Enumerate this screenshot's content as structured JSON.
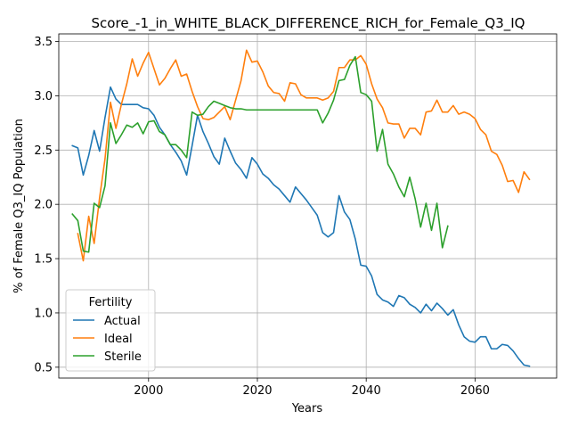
{
  "chart_data": {
    "type": "line",
    "title": "Score_-1_in_WHITE_BLACK_DIFFERENCE_RICH_for_Female_Q3_IQ",
    "xlabel": "Years",
    "ylabel": "% of Female Q3_IQ Population",
    "xlim": [
      2065.5,
      2075
    ],
    "x_ticks": [
      2000,
      2020,
      2040,
      2060
    ],
    "y_ticks": [
      0.5,
      1.0,
      1.5,
      2.0,
      2.5,
      3.0,
      3.5
    ],
    "y_tick_labels": [
      "0.5",
      "1.0",
      "1.5",
      "2.0",
      "2.5",
      "3.0",
      "3.5"
    ],
    "xaxis_range": [
      1983.5,
      2075
    ],
    "ylim": [
      0.4,
      3.57
    ],
    "grid": true,
    "legend": {
      "title": "Fertility",
      "placement": "lower-left"
    },
    "series": [
      {
        "name": "Actual",
        "color": "#1f77b4",
        "x": [
          1986,
          1987,
          1988,
          1989,
          1990,
          1991,
          1992,
          1993,
          1994,
          1995,
          1996,
          1997,
          1998,
          1999,
          2000,
          2001,
          2002,
          2003,
          2004,
          2005,
          2006,
          2007,
          2008,
          2009,
          2010,
          2011,
          2012,
          2013,
          2014,
          2015,
          2016,
          2017,
          2018,
          2019,
          2020,
          2021,
          2022,
          2023,
          2024,
          2025,
          2026,
          2027,
          2028,
          2029,
          2030,
          2031,
          2032,
          2033,
          2034,
          2035,
          2036,
          2037,
          2038,
          2039,
          2040,
          2041,
          2042,
          2043,
          2044,
          2045,
          2046,
          2047,
          2048,
          2049,
          2050,
          2051,
          2052,
          2053,
          2054,
          2055,
          2056,
          2057,
          2058,
          2059,
          2060,
          2061,
          2062,
          2063,
          2064,
          2065,
          2066,
          2067,
          2068,
          2069,
          2070
        ],
        "values": [
          2.54,
          2.52,
          2.27,
          2.45,
          2.68,
          2.49,
          2.8,
          3.08,
          2.97,
          2.92,
          2.92,
          2.92,
          2.92,
          2.89,
          2.88,
          2.82,
          2.71,
          2.64,
          2.55,
          2.48,
          2.4,
          2.27,
          2.54,
          2.82,
          2.67,
          2.56,
          2.44,
          2.37,
          2.61,
          2.49,
          2.38,
          2.32,
          2.24,
          2.43,
          2.37,
          2.28,
          2.24,
          2.18,
          2.14,
          2.08,
          2.02,
          2.16,
          2.1,
          2.04,
          1.97,
          1.9,
          1.74,
          1.7,
          1.74,
          2.08,
          1.93,
          1.86,
          1.68,
          1.44,
          1.43,
          1.34,
          1.17,
          1.12,
          1.1,
          1.06,
          1.16,
          1.14,
          1.08,
          1.05,
          1.0,
          1.08,
          1.02,
          1.09,
          1.04,
          0.98,
          1.03,
          0.89,
          0.78,
          0.74,
          0.73,
          0.78,
          0.78,
          0.67,
          0.67,
          0.71,
          0.7,
          0.65,
          0.58,
          0.52,
          0.51
        ]
      },
      {
        "name": "Ideal",
        "color": "#ff7f0e",
        "x": [
          1987,
          1988,
          1989,
          1990,
          1991,
          1992,
          1993,
          1994,
          1995,
          1996,
          1997,
          1998,
          1999,
          2000,
          2001,
          2002,
          2003,
          2004,
          2005,
          2006,
          2007,
          2008,
          2009,
          2010,
          2011,
          2012,
          2013,
          2014,
          2015,
          2016,
          2017,
          2018,
          2019,
          2020,
          2021,
          2022,
          2023,
          2024,
          2025,
          2026,
          2027,
          2028,
          2029,
          2030,
          2031,
          2032,
          2033,
          2034,
          2035,
          2036,
          2037,
          2038,
          2039,
          2040,
          2041,
          2042,
          2043,
          2044,
          2045,
          2046,
          2047,
          2048,
          2049,
          2050,
          2051,
          2052,
          2053,
          2054,
          2055,
          2056,
          2057,
          2058,
          2059,
          2060,
          2061,
          2062,
          2063,
          2064,
          2065,
          2066,
          2067,
          2068,
          2069,
          2070
        ],
        "values": [
          1.73,
          1.48,
          1.89,
          1.64,
          2.06,
          2.42,
          2.94,
          2.7,
          2.92,
          3.11,
          3.34,
          3.18,
          3.3,
          3.4,
          3.25,
          3.1,
          3.16,
          3.25,
          3.33,
          3.18,
          3.2,
          3.04,
          2.9,
          2.79,
          2.78,
          2.8,
          2.85,
          2.9,
          2.78,
          2.96,
          3.14,
          3.42,
          3.31,
          3.32,
          3.22,
          3.09,
          3.03,
          3.02,
          2.95,
          3.12,
          3.11,
          3.01,
          2.98,
          2.98,
          2.98,
          2.96,
          2.98,
          3.04,
          3.26,
          3.26,
          3.33,
          3.33,
          3.37,
          3.29,
          3.11,
          2.97,
          2.89,
          2.75,
          2.74,
          2.74,
          2.61,
          2.7,
          2.7,
          2.64,
          2.85,
          2.86,
          2.96,
          2.85,
          2.85,
          2.91,
          2.83,
          2.85,
          2.83,
          2.79,
          2.69,
          2.64,
          2.49,
          2.46,
          2.36,
          2.21,
          2.22,
          2.11,
          2.3,
          2.23
        ]
      },
      {
        "name": "Sterile",
        "color": "#2ca02c",
        "x": [
          1986,
          1987,
          1988,
          1989,
          1990,
          1991,
          1992,
          1993,
          1994,
          1995,
          1996,
          1997,
          1998,
          1999,
          2000,
          2001,
          2002,
          2003,
          2004,
          2005,
          2006,
          2007,
          2008,
          2009,
          2010,
          2011,
          2012,
          2013,
          2014,
          2015,
          2016,
          2017,
          2018,
          2019,
          2020,
          2021,
          2022,
          2023,
          2024,
          2025,
          2026,
          2027,
          2028,
          2029,
          2030,
          2031,
          2032,
          2033,
          2034,
          2035,
          2036,
          2037,
          2038,
          2039,
          2040,
          2041,
          2042,
          2043,
          2044,
          2045,
          2046,
          2047,
          2048,
          2049,
          2050,
          2051,
          2052,
          2053,
          2054,
          2055
        ],
        "values": [
          1.91,
          1.85,
          1.57,
          1.56,
          2.01,
          1.97,
          2.17,
          2.75,
          2.56,
          2.64,
          2.73,
          2.71,
          2.75,
          2.65,
          2.76,
          2.77,
          2.67,
          2.64,
          2.55,
          2.55,
          2.5,
          2.43,
          2.85,
          2.82,
          2.83,
          2.9,
          2.95,
          2.93,
          2.91,
          2.89,
          2.88,
          2.88,
          2.87,
          2.87,
          2.87,
          2.87,
          2.87,
          2.87,
          2.87,
          2.87,
          2.87,
          2.87,
          2.87,
          2.87,
          2.87,
          2.87,
          2.75,
          2.84,
          2.96,
          3.14,
          3.15,
          3.28,
          3.36,
          3.03,
          3.01,
          2.95,
          2.49,
          2.69,
          2.37,
          2.28,
          2.16,
          2.07,
          2.25,
          2.05,
          1.79,
          2.01,
          1.76,
          2.01,
          1.6,
          1.8
        ]
      }
    ]
  }
}
